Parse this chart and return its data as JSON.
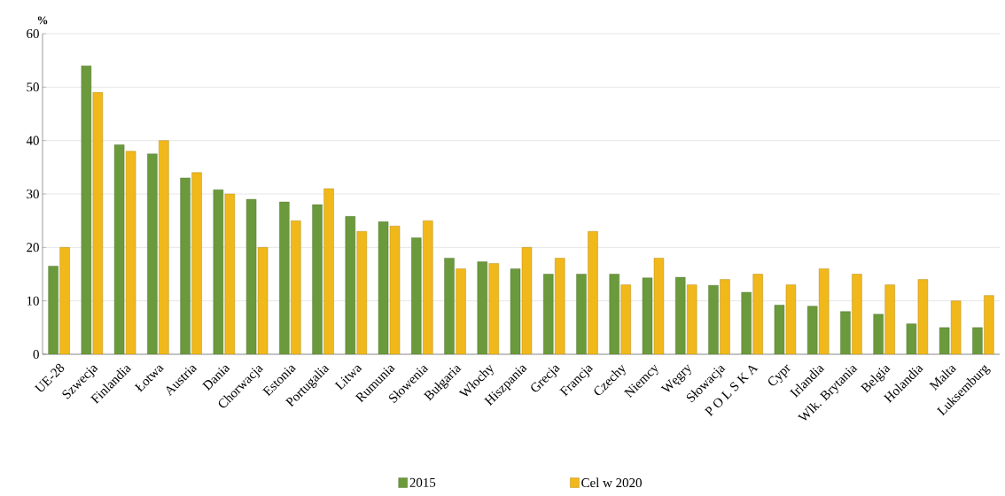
{
  "chart_data": {
    "type": "bar",
    "ylabel": "%",
    "categories": [
      "UE-28",
      "Szwecja",
      "Finlandia",
      "Łotwa",
      "Austria",
      "Dania",
      "Chorwacja",
      "Estonia",
      "Portugalia",
      "Litwa",
      "Rumunia",
      "Słowenia",
      "Bułgaria",
      "Włochy",
      "Hiszpania",
      "Grecja",
      "Francja",
      "Czechy",
      "Niemcy",
      "Węgry",
      "Słowacja",
      "P O L S K A",
      "Cypr",
      "Irlandia",
      "Wlk. Brytania",
      "Belgia",
      "Holandia",
      "Malta",
      "Luksemburg"
    ],
    "series": [
      {
        "name": "2015",
        "color": "#6b9a3c",
        "values": [
          16.5,
          54,
          39.2,
          37.5,
          33,
          30.8,
          29,
          28.5,
          28,
          25.8,
          24.8,
          21.8,
          18,
          17.3,
          16,
          15,
          15,
          15,
          14.3,
          14.4,
          12.9,
          11.6,
          9.2,
          9,
          8,
          7.5,
          5.7,
          5,
          5
        ]
      },
      {
        "name": "Cel w 2020",
        "color": "#f0b81a",
        "values": [
          20,
          49,
          38,
          40,
          34,
          30,
          20,
          25,
          31,
          23,
          24,
          25,
          16,
          17,
          20,
          18,
          23,
          13,
          18,
          13,
          14,
          15,
          13,
          16,
          15,
          13,
          14,
          10,
          11
        ]
      }
    ],
    "ylim": [
      0,
      60
    ],
    "yticks": [
      0,
      10,
      20,
      30,
      40,
      50,
      60
    ],
    "grid": "y",
    "legend": "bottom"
  }
}
